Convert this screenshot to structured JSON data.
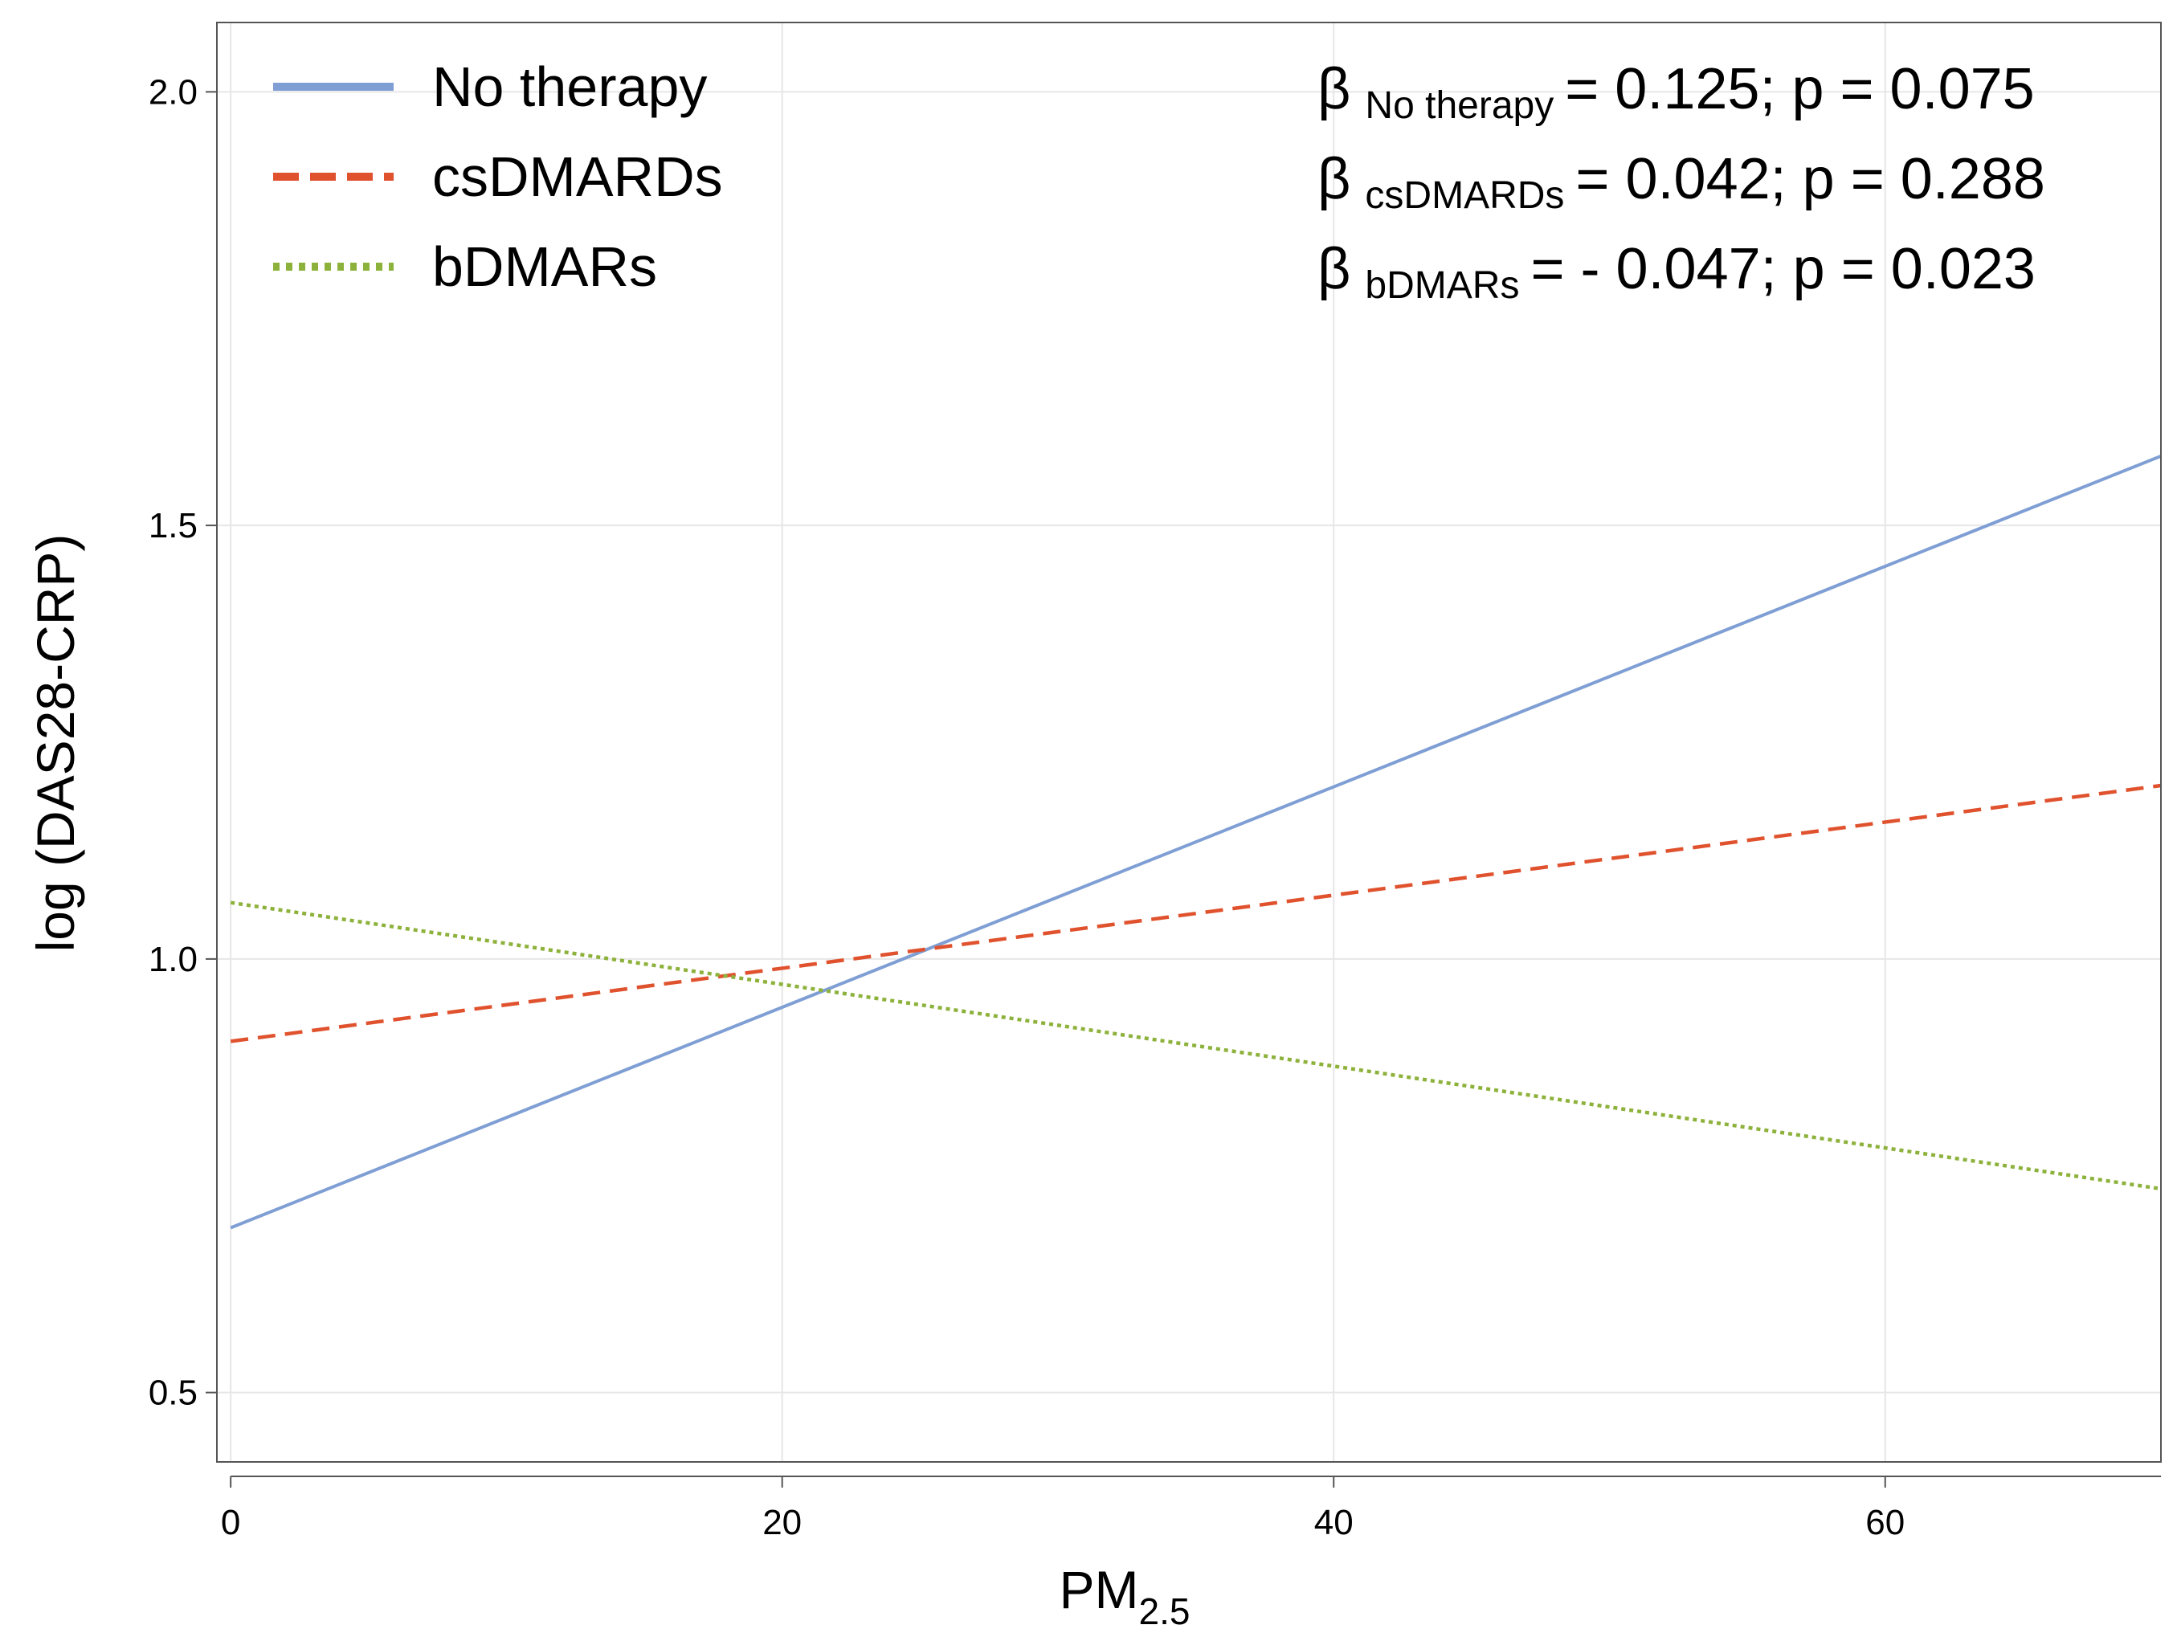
{
  "chart_data": {
    "type": "line",
    "title": "",
    "xlabel": "PM",
    "xlabel_subscript": "2.5",
    "ylabel": "log (DAS28-CRP)",
    "xlim": [
      -0.5,
      70
    ],
    "ylim": [
      0.42,
      2.08
    ],
    "x_ticks": [
      0,
      20,
      40,
      60
    ],
    "x_tick_labels": [
      "0",
      "20",
      "40",
      "60"
    ],
    "y_ticks": [
      0.5,
      1.0,
      1.5,
      2.0
    ],
    "y_tick_labels": [
      "0.5",
      "1.0",
      "1.5",
      "2.0"
    ],
    "grid": true,
    "legend_position": "top-left",
    "series": [
      {
        "name": "No therapy",
        "style": "solid",
        "color": "#7f9fd4",
        "x": [
          0,
          70
        ],
        "y": [
          0.69,
          1.58
        ]
      },
      {
        "name": "csDMARDs",
        "style": "dashed",
        "color": "#e0522e",
        "x": [
          0,
          70
        ],
        "y": [
          0.905,
          1.2
        ]
      },
      {
        "name": "bDMARs",
        "style": "dotted",
        "color": "#8db23b",
        "x": [
          0,
          70
        ],
        "y": [
          1.065,
          0.735
        ]
      }
    ],
    "annotations": [
      {
        "symbol": "β",
        "subscript": "No therapy",
        "text": "= 0.125; p = 0.075"
      },
      {
        "symbol": "β",
        "subscript": "csDMARDs",
        "text": "= 0.042; p = 0.288"
      },
      {
        "symbol": "β",
        "subscript": "bDMARs",
        "text": "= - 0.047; p = 0.023"
      }
    ]
  }
}
